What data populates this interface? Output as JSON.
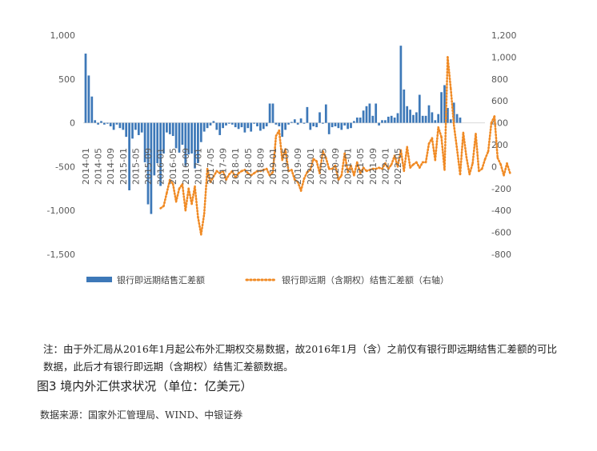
{
  "chart_data": {
    "type": "bar",
    "title": "",
    "xlabel": "",
    "left_axis": {
      "ylim": [
        -1500,
        1000
      ],
      "ticks": [
        "1,000",
        "500",
        "0",
        "-500",
        "-1,000",
        "-1,500"
      ]
    },
    "right_axis": {
      "ylim": [
        -800,
        1200
      ],
      "ticks": [
        "1,200",
        "1,000",
        "800",
        "600",
        "400",
        "200",
        "0",
        "-200",
        "-400",
        "-600",
        "-800"
      ]
    },
    "x_tick_labels": [
      "2014-01",
      "2014-05",
      "2014-09",
      "2015-01",
      "2015-05",
      "2015-09",
      "2016-01",
      "2016-05",
      "2016-09",
      "2017-01",
      "2017-05",
      "2017-09",
      "2018-01",
      "2018-05",
      "2018-09",
      "2019-01",
      "2019-05",
      "2019-09",
      "2020-01",
      "2020-05",
      "2020-09",
      "2021-01",
      "2021-05",
      "2021-09",
      "2022-01",
      "2022-05"
    ],
    "grid": false,
    "legend_position": "bottom",
    "series": [
      {
        "name": "银行即远期结售汇差额",
        "type": "bar",
        "axis": "left",
        "color": "#3d78b8",
        "start": "2014-01",
        "values": [
          790,
          540,
          300,
          30,
          -20,
          20,
          -20,
          -10,
          -40,
          -80,
          -20,
          -60,
          -80,
          -160,
          -770,
          -180,
          -80,
          -140,
          -110,
          -450,
          -930,
          -1040,
          -600,
          -460,
          -720,
          -350,
          -110,
          -130,
          -150,
          -290,
          -340,
          -250,
          -490,
          -360,
          -350,
          -520,
          -460,
          -220,
          -100,
          -60,
          -30,
          20,
          -80,
          -140,
          -60,
          -30,
          -10,
          -20,
          -50,
          -70,
          -50,
          -110,
          -60,
          -100,
          -10,
          -40,
          -90,
          -70,
          -40,
          220,
          220,
          -20,
          -40,
          -160,
          -80,
          -20,
          10,
          40,
          -20,
          50,
          -10,
          180,
          -80,
          -40,
          -50,
          120,
          -10,
          210,
          -130,
          -50,
          -40,
          -60,
          -80,
          -30,
          -70,
          -60,
          20,
          60,
          60,
          140,
          190,
          220,
          80,
          220,
          -30,
          30,
          30,
          70,
          80,
          60,
          110,
          880,
          380,
          190,
          150,
          90,
          120,
          320,
          80,
          80,
          200,
          120,
          30,
          100,
          350,
          430,
          170,
          40,
          230,
          100,
          60
        ],
        "bar_width_ratio": 0.7
      },
      {
        "name": "银行即远期（含期权）结售汇差额（右轴）",
        "type": "line",
        "style": "dotted",
        "axis": "right",
        "color": "#f08a24",
        "start": "2016-01",
        "values": [
          -380,
          -360,
          -240,
          -120,
          -160,
          -320,
          -200,
          -160,
          -400,
          -200,
          -340,
          -180,
          -460,
          -620,
          -430,
          -20,
          -140,
          -90,
          -40,
          -60,
          -40,
          -120,
          -70,
          -40,
          -100,
          -60,
          -40,
          -30,
          -60,
          -80,
          -60,
          -40,
          -40,
          -30,
          -20,
          -80,
          -50,
          280,
          330,
          60,
          160,
          -40,
          -30,
          -120,
          -140,
          -220,
          -110,
          -50,
          -30,
          70,
          50,
          -60,
          140,
          80,
          -20,
          -20,
          10,
          -120,
          -80,
          120,
          -50,
          10,
          -80,
          40,
          -60,
          -10,
          -40,
          -30,
          -20,
          -20,
          -10,
          -20,
          30,
          -20,
          20,
          100,
          0,
          150,
          -40,
          180,
          -10,
          20,
          40,
          -10,
          40,
          40,
          210,
          260,
          60,
          360,
          270,
          -30,
          1000,
          710,
          380,
          160,
          -70,
          310,
          90,
          -70,
          30,
          300,
          -40,
          -20,
          70,
          140,
          400,
          460,
          80,
          20,
          -80,
          30,
          -60
        ]
      }
    ],
    "legend": [
      "银行即远期结售汇差额",
      "银行即远期（含期权）结售汇差额（右轴）"
    ]
  },
  "note": {
    "text": "注：由于外汇局从2016年1月起公布外汇期权交易数据，故2016年1月（含）之前仅有银行即远期结售汇差额的可比数据，此后才有银行即远期（含期权）结售汇差额数据。"
  },
  "figure_title": "图3  境内外汇供求状况（单位：亿美元）",
  "source": "数据来源：国家外汇管理局、WIND、中银证券"
}
